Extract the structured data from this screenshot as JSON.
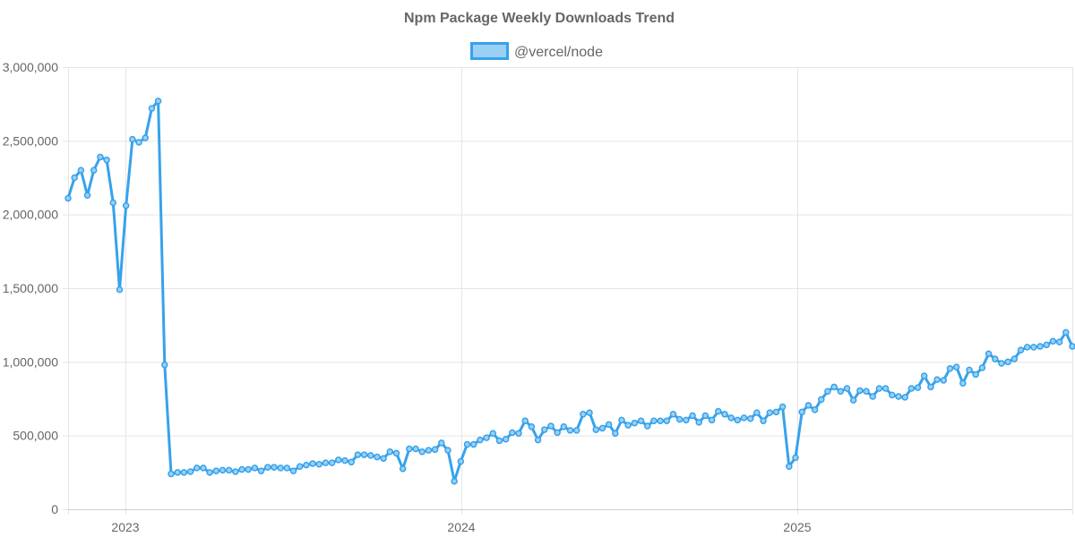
{
  "chart_data": {
    "type": "line",
    "title": "Npm Package Weekly Downloads Trend",
    "xlabel": "",
    "ylabel": "",
    "ylim": [
      0,
      3000000
    ],
    "y_ticks": [
      "0",
      "500,000",
      "1,000,000",
      "1,500,000",
      "2,000,000",
      "2,500,000",
      "3,000,000"
    ],
    "x_ticks": [
      "2023",
      "2024",
      "2025"
    ],
    "grid": true,
    "legend_position": "top",
    "series": [
      {
        "name": "@vercel/node",
        "color": "#36a2eb",
        "fill_color": "#9ad0f5",
        "values": [
          2110000,
          2250000,
          2300000,
          2130000,
          2300000,
          2390000,
          2370000,
          2080000,
          1490000,
          2060000,
          2510000,
          2490000,
          2520000,
          2720000,
          2770000,
          980000,
          240000,
          250000,
          250000,
          255000,
          280000,
          280000,
          250000,
          260000,
          265000,
          265000,
          255000,
          270000,
          270000,
          280000,
          260000,
          285000,
          285000,
          280000,
          280000,
          260000,
          290000,
          300000,
          310000,
          305000,
          315000,
          315000,
          335000,
          330000,
          320000,
          370000,
          370000,
          365000,
          355000,
          345000,
          390000,
          380000,
          275000,
          410000,
          410000,
          390000,
          400000,
          405000,
          450000,
          400000,
          190000,
          325000,
          440000,
          440000,
          470000,
          485000,
          515000,
          465000,
          475000,
          520000,
          515000,
          600000,
          560000,
          470000,
          540000,
          565000,
          520000,
          560000,
          535000,
          535000,
          645000,
          655000,
          540000,
          550000,
          575000,
          515000,
          605000,
          570000,
          585000,
          600000,
          565000,
          600000,
          600000,
          600000,
          645000,
          610000,
          605000,
          635000,
          590000,
          635000,
          605000,
          665000,
          645000,
          620000,
          605000,
          620000,
          615000,
          655000,
          600000,
          655000,
          660000,
          695000,
          290000,
          350000,
          660000,
          705000,
          675000,
          745000,
          800000,
          830000,
          800000,
          820000,
          740000,
          805000,
          800000,
          765000,
          820000,
          820000,
          775000,
          765000,
          760000,
          820000,
          825000,
          905000,
          830000,
          880000,
          875000,
          955000,
          965000,
          855000,
          945000,
          915000,
          960000,
          1055000,
          1020000,
          990000,
          1000000,
          1020000,
          1080000,
          1100000,
          1100000,
          1105000,
          1115000,
          1140000,
          1135000,
          1200000,
          1105000
        ]
      }
    ]
  }
}
